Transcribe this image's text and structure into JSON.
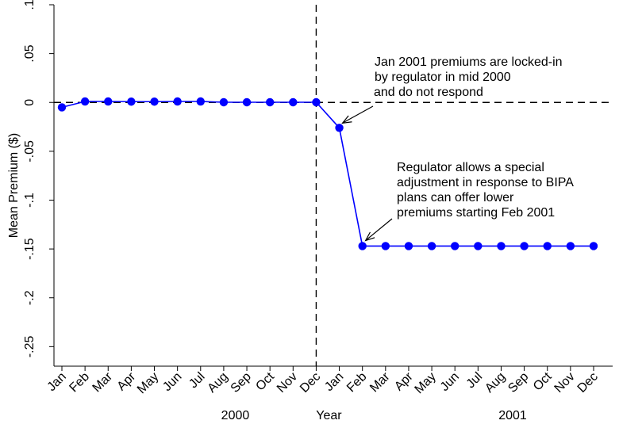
{
  "chart_data": {
    "type": "line",
    "title": "",
    "xlabel": "Year",
    "ylabel": "Mean Premium ($)",
    "ylim": [
      -0.27,
      0.1
    ],
    "yticks": [
      {
        "value": 0.1,
        "label": ".1"
      },
      {
        "value": 0.05,
        "label": ".05"
      },
      {
        "value": 0,
        "label": "0"
      },
      {
        "value": -0.05,
        "label": "-.05"
      },
      {
        "value": -0.1,
        "label": "-.1"
      },
      {
        "value": -0.15,
        "label": "-.15"
      },
      {
        "value": -0.2,
        "label": "-.2"
      },
      {
        "value": -0.25,
        "label": "-.25"
      }
    ],
    "categories": [
      "Jan",
      "Feb",
      "Mar",
      "Apr",
      "May",
      "Jun",
      "Jul",
      "Aug",
      "Sep",
      "Oct",
      "Nov",
      "Dec",
      "Jan",
      "Feb",
      "Mar",
      "Apr",
      "May",
      "Jun",
      "Jul",
      "Aug",
      "Sep",
      "Oct",
      "Nov",
      "Dec"
    ],
    "year_labels": [
      {
        "label": "2000",
        "month_index": 7.5
      },
      {
        "label": "2001",
        "month_index": 19.5
      }
    ],
    "series": [
      {
        "name": "",
        "color": "#0000ff",
        "values": [
          -0.005,
          0.001,
          0.001,
          0.0008,
          0.0008,
          0.001,
          0.001,
          0.0002,
          0.0002,
          0.0002,
          0.0002,
          0.0002,
          -0.026,
          -0.147,
          -0.147,
          -0.147,
          -0.147,
          -0.147,
          -0.147,
          -0.147,
          -0.147,
          -0.147,
          -0.147,
          -0.147
        ]
      }
    ],
    "reference_lines": {
      "horizontal_y": 0,
      "vertical_after_index": 11
    },
    "grid": false,
    "legend": "none",
    "annotations": [
      {
        "lines": [
          "Jan 2001 premiums are locked-in",
          "by regulator in mid 2000",
          "and do not respond"
        ],
        "target_index": 12
      },
      {
        "lines": [
          "Regulator allows a special",
          "adjustment in response to BIPA",
          "plans can offer lower",
          "premiums starting Feb 2001"
        ],
        "target_index": 13
      }
    ]
  }
}
